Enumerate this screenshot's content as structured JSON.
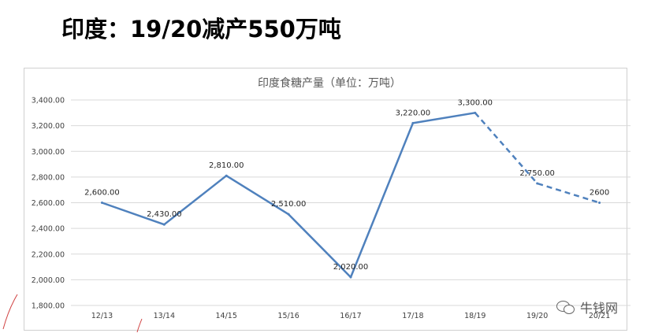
{
  "page": {
    "title": "印度：19/20减产550万吨",
    "watermark": "牛钱网",
    "watermark_icon": "wechat-icon"
  },
  "colors": {
    "line": "#4f81bd",
    "grid": "#d9d9d9",
    "axis_text": "#404040",
    "title_text": "#595959"
  },
  "chart_data": {
    "type": "line",
    "title": "印度食糖产量（单位：万吨）",
    "xlabel": "",
    "ylabel": "",
    "categories": [
      "12/13",
      "13/14",
      "14/15",
      "15/16",
      "16/17",
      "17/18",
      "18/19",
      "19/20",
      "20/21"
    ],
    "values": [
      2600,
      2430,
      2810,
      2510,
      2020,
      3220,
      3300,
      2750,
      2600
    ],
    "data_labels": [
      "2,600.00",
      "2,430.00",
      "2,810.00",
      "2,510.00",
      "2,020.00",
      "3,220.00",
      "3,300.00",
      "2,750.00",
      "2600"
    ],
    "solid_until_index": 6,
    "dashed_from_index": 6,
    "ylim": [
      1800,
      3400
    ],
    "yticks": [
      1800,
      2000,
      2200,
      2400,
      2600,
      2800,
      3000,
      3200,
      3400
    ],
    "ytick_labels": [
      "1,800.00",
      "2,000.00",
      "2,200.00",
      "2,400.00",
      "2,600.00",
      "2,800.00",
      "3,000.00",
      "3,200.00",
      "3,400.00"
    ],
    "grid": true,
    "legend": "none"
  }
}
